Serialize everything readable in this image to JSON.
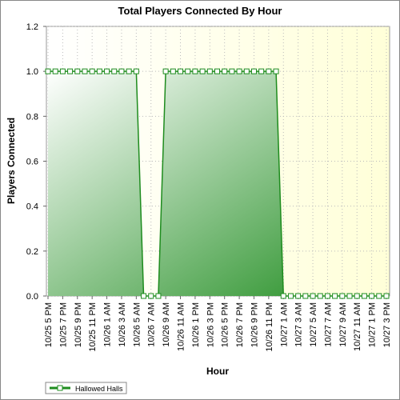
{
  "chart_data": {
    "type": "area",
    "title": "Total Players Connected By Hour",
    "x_label": "Hour",
    "y_label": "Players Connected",
    "categories": [
      "10/25 5 PM",
      null,
      "10/25 7 PM",
      null,
      "10/25 9 PM",
      null,
      "10/25 11 PM",
      null,
      "10/26 1 AM",
      null,
      "10/26 3 AM",
      null,
      "10/26 5 AM",
      null,
      "10/26 7 AM",
      null,
      "10/26 9 AM",
      null,
      "10/26 11 AM",
      null,
      "10/26 1 PM",
      null,
      "10/26 3 PM",
      null,
      "10/26 5 PM",
      null,
      "10/26 7 PM",
      null,
      "10/26 9 PM",
      null,
      "10/26 11 PM",
      null,
      "10/27 1 AM",
      null,
      "10/27 3 AM",
      null,
      "10/27 5 AM",
      null,
      "10/27 7 AM",
      null,
      "10/27 9 AM",
      null,
      "10/27 11 AM",
      null,
      "10/27 1 PM",
      null,
      "10/27 3 PM"
    ],
    "series": [
      {
        "name": "Hallowed Halls",
        "color": "#1e8c1e",
        "values": [
          1,
          1,
          1,
          1,
          1,
          1,
          1,
          1,
          1,
          1,
          1,
          1,
          1,
          0,
          0,
          0,
          1,
          1,
          1,
          1,
          1,
          1,
          1,
          1,
          1,
          1,
          1,
          1,
          1,
          1,
          1,
          1,
          0,
          0,
          0,
          0,
          0,
          0,
          0,
          0,
          0,
          0,
          0,
          0,
          0,
          0,
          0
        ]
      }
    ],
    "ylim": [
      0,
      1.2
    ],
    "yticks": [
      {
        "value": 0,
        "label": "0.0"
      },
      {
        "value": 0.2,
        "label": "0.2"
      },
      {
        "value": 0.4,
        "label": "0.4"
      },
      {
        "value": 0.6,
        "label": "0.6"
      },
      {
        "value": 0.8,
        "label": "0.8"
      },
      {
        "value": 1,
        "label": "1.0"
      },
      {
        "value": 1.2,
        "label": "1.2"
      }
    ],
    "grid": true,
    "legend": "bottom-left"
  }
}
